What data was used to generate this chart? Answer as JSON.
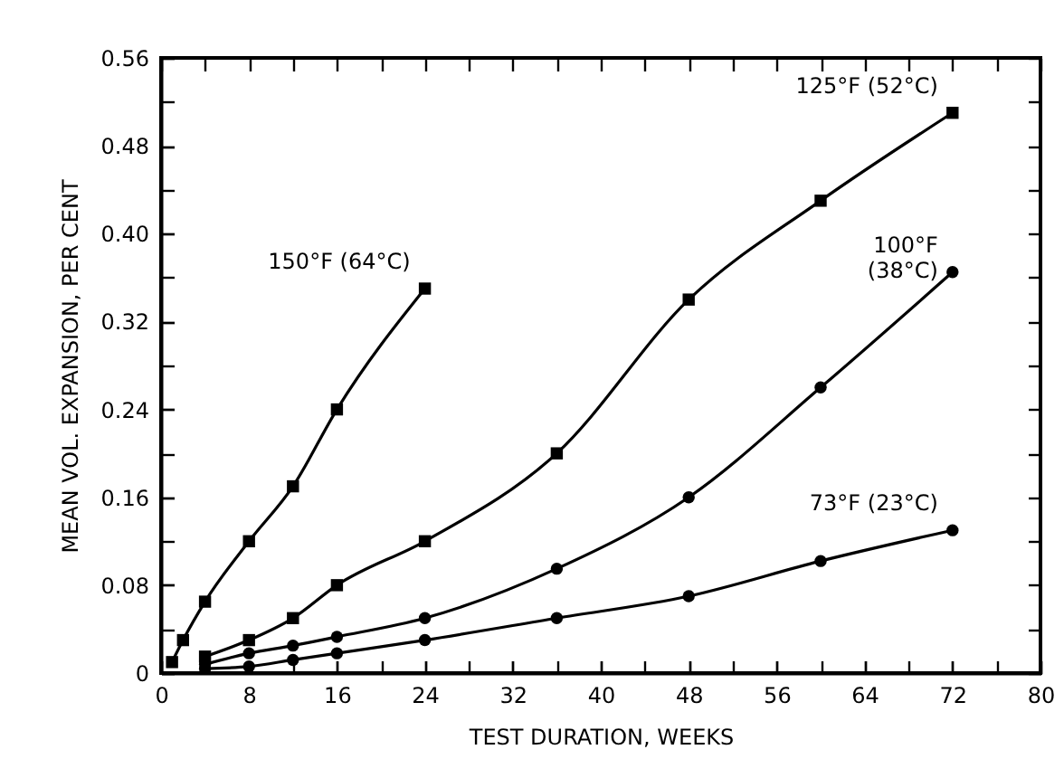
{
  "chart_data": {
    "type": "line",
    "xlabel": "TEST DURATION, WEEKS",
    "ylabel": "MEAN VOL. EXPANSION, PER CENT",
    "series": [
      {
        "name": "150°F (64°C)",
        "color": "#000000",
        "marker": "square",
        "x": [
          1,
          2,
          4,
          8,
          12,
          16,
          24
        ],
        "values": [
          0.01,
          0.03,
          0.065,
          0.12,
          0.17,
          0.24,
          0.35
        ]
      },
      {
        "name": "125°F (52°C)",
        "color": "#000000",
        "marker": "square",
        "x": [
          4,
          8,
          12,
          16,
          24,
          36,
          48,
          60,
          72
        ],
        "values": [
          0.015,
          0.03,
          0.05,
          0.08,
          0.12,
          0.2,
          0.34,
          0.43,
          0.51
        ]
      },
      {
        "name": "100°F\n(38°C)",
        "color": "#000000",
        "marker": "circle",
        "x": [
          4,
          8,
          12,
          16,
          24,
          36,
          48,
          60,
          72
        ],
        "values": [
          0.008,
          0.018,
          0.025,
          0.033,
          0.05,
          0.095,
          0.16,
          0.26,
          0.365
        ]
      },
      {
        "name": "73°F (23°C)",
        "color": "#000000",
        "marker": "circle",
        "x": [
          4,
          8,
          12,
          16,
          24,
          36,
          48,
          60,
          72
        ],
        "values": [
          0.004,
          0.006,
          0.012,
          0.018,
          0.03,
          0.05,
          0.07,
          0.102,
          0.13
        ]
      }
    ],
    "xlim": [
      0,
      80
    ],
    "xticks": [
      0,
      {
        "value": 4,
        "label": null
      },
      8,
      {
        "value": 12,
        "label": null
      },
      16,
      {
        "value": 20,
        "label": null
      },
      24,
      {
        "value": 28,
        "label": null
      },
      32,
      {
        "value": 36,
        "label": null
      },
      40,
      {
        "value": 44,
        "label": null
      },
      48,
      {
        "value": 52,
        "label": null
      },
      56,
      {
        "value": 60,
        "label": null
      },
      64,
      {
        "value": 68,
        "label": null
      },
      72,
      {
        "value": 76,
        "label": null
      },
      80
    ],
    "ylim": [
      0,
      0.56
    ],
    "yticks": [
      0,
      {
        "value": 0.04,
        "label": null
      },
      0.08,
      {
        "value": 0.12,
        "label": null
      },
      0.16,
      {
        "value": 0.2,
        "label": null
      },
      0.24,
      {
        "value": 0.28,
        "label": null
      },
      0.32,
      {
        "value": 0.36,
        "label": null
      },
      {
        "value": 0.4,
        "label": "0.40"
      },
      {
        "value": 0.44,
        "label": null
      },
      0.48,
      {
        "value": 0.52,
        "label": null
      },
      0.56
    ],
    "grid": false
  }
}
